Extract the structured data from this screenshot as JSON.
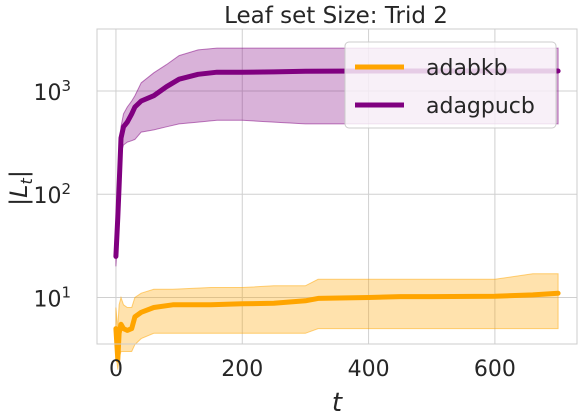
{
  "chart_data": {
    "type": "line",
    "title": "Leaf set Size: Trid 2",
    "xlabel": "t",
    "ylabel": "|L_t|",
    "xlim": [
      -30,
      730
    ],
    "ylim_log10": [
      0.55,
      3.6
    ],
    "yscale": "log",
    "grid": true,
    "legend_position": "top-right",
    "x_ticks": [
      0,
      200,
      400,
      600
    ],
    "y_ticks": [
      {
        "value": 10,
        "base": "10",
        "exp": "1"
      },
      {
        "value": 100,
        "base": "10",
        "exp": "2"
      },
      {
        "value": 1000,
        "base": "10",
        "exp": "3"
      }
    ],
    "series": [
      {
        "name": "adabkb",
        "color": "#FFA500",
        "x": [
          0,
          3,
          5,
          8,
          12,
          18,
          25,
          30,
          40,
          60,
          90,
          150,
          200,
          250,
          300,
          320,
          400,
          450,
          500,
          600,
          660,
          700
        ],
        "y": [
          5,
          2.5,
          4.5,
          5.5,
          5,
          4.8,
          5,
          6.5,
          7.2,
          8,
          8.5,
          8.5,
          8.7,
          8.8,
          9.3,
          9.8,
          10,
          10.2,
          10.2,
          10.3,
          10.6,
          11
        ],
        "lower": [
          3,
          2,
          2.6,
          3,
          3,
          3,
          3,
          3.5,
          4,
          4.5,
          4.5,
          4.5,
          4.5,
          4.5,
          4.5,
          5,
          5,
          5,
          5,
          5,
          5,
          5
        ],
        "upper": [
          8,
          5,
          8.5,
          10,
          8.5,
          8,
          8,
          10,
          11,
          12,
          12,
          12.5,
          12.5,
          13,
          13,
          15,
          15,
          15,
          15,
          15,
          17,
          17
        ]
      },
      {
        "name": "adagpucb",
        "color": "#800080",
        "x": [
          0,
          3,
          5,
          8,
          12,
          18,
          25,
          30,
          40,
          60,
          80,
          100,
          130,
          160,
          200,
          250,
          300,
          400,
          500,
          600,
          700
        ],
        "y": [
          25,
          60,
          120,
          350,
          450,
          500,
          600,
          700,
          800,
          900,
          1100,
          1300,
          1450,
          1520,
          1520,
          1530,
          1550,
          1560,
          1560,
          1560,
          1560
        ],
        "lower": [
          20,
          40,
          100,
          250,
          300,
          320,
          330,
          340,
          400,
          420,
          450,
          480,
          500,
          520,
          520,
          500,
          480,
          480,
          480,
          480,
          480
        ],
        "upper": [
          28,
          80,
          150,
          450,
          600,
          700,
          800,
          900,
          1200,
          1500,
          1800,
          2200,
          2500,
          2600,
          2600,
          2600,
          2600,
          2600,
          2600,
          2600,
          2600
        ]
      }
    ]
  }
}
